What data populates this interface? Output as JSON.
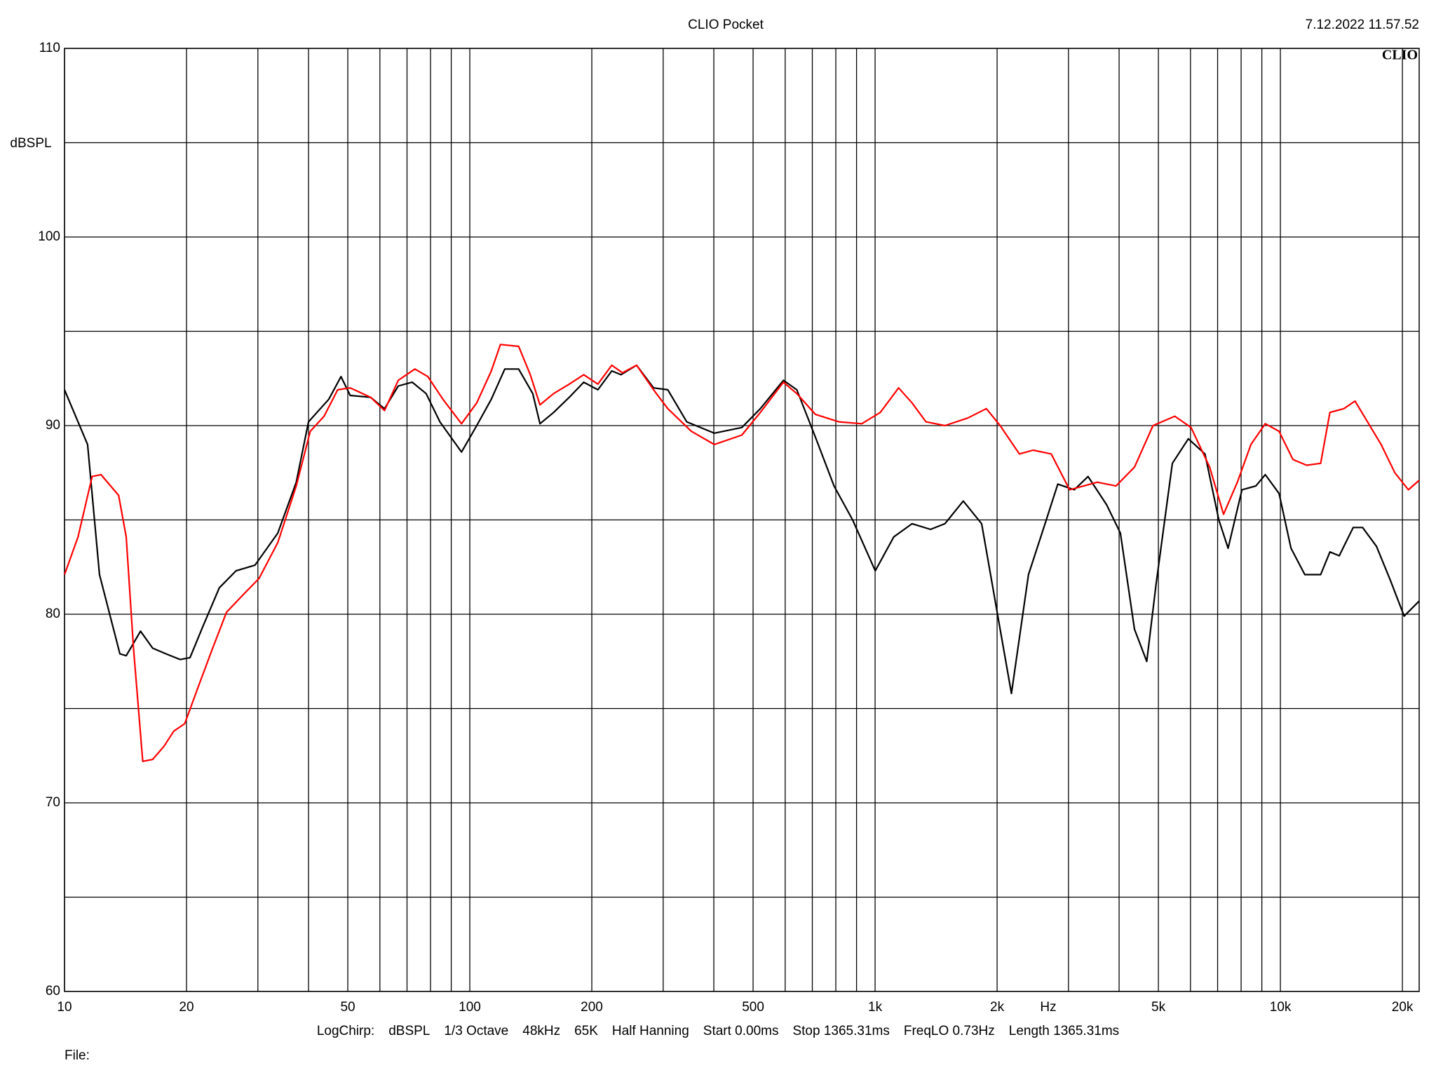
{
  "chart_data": {
    "type": "line",
    "title": "CLIO Pocket",
    "timestamp": "7.12.2022 11.57.52",
    "logo": "CLIO",
    "y_label": "dBSPL",
    "x_label": "Hz",
    "log_x": true,
    "grid": true,
    "xlim": [
      10,
      22000
    ],
    "xticks": [
      10,
      20,
      50,
      100,
      200,
      500,
      {
        "value": 1000,
        "label": "1k"
      },
      {
        "value": 2000,
        "label": "2k"
      },
      {
        "value": 5000,
        "label": "5k"
      },
      {
        "value": 10000,
        "label": "10k"
      },
      {
        "value": 20000,
        "label": "20k"
      }
    ],
    "xgrid_minor": [
      30,
      40,
      60,
      70,
      80,
      90,
      300,
      400,
      600,
      700,
      800,
      900,
      3000,
      4000,
      6000,
      7000,
      8000,
      9000
    ],
    "ylim": [
      60,
      110
    ],
    "yticks": [
      60,
      70,
      80,
      90,
      100,
      110
    ],
    "ygrid_minor": [
      65,
      75,
      85,
      95,
      105
    ],
    "settings": [
      "LogChirp:",
      "dBSPL",
      "1/3 Octave",
      "48kHz",
      "65K",
      "Half Hanning",
      "Start 0.00ms",
      "Stop 1365.31ms",
      "FreqLO 0.73Hz",
      "Length 1365.31ms"
    ],
    "file_label": "File:",
    "series": [
      {
        "color": "#000000",
        "x": [
          10,
          11.4,
          12.2,
          13.7,
          14.2,
          15.4,
          16.5,
          17.8,
          19.3,
          20.4,
          22,
          24.1,
          26.5,
          29.5,
          33.6,
          37.3,
          40,
          44.9,
          48.1,
          50.7,
          56.9,
          61.6,
          66.6,
          72.1,
          78,
          84.4,
          95.4,
          104,
          113,
          122,
          132,
          143,
          149,
          161,
          176,
          191,
          207,
          224,
          236,
          258,
          284,
          308,
          343,
          401,
          469,
          521,
          594,
          641,
          712,
          792,
          880,
          1001,
          1112,
          1234,
          1370,
          1487,
          1650,
          1832,
          2035,
          2170,
          2390,
          2645,
          2823,
          3100,
          3354,
          3727,
          4030,
          4365,
          4680,
          4935,
          5413,
          5927,
          6516,
          7050,
          7430,
          8040,
          8700,
          9175,
          9925,
          10620,
          11490,
          12570,
          13250,
          13970,
          15120,
          15950,
          17260,
          18680,
          20200,
          22000
        ],
        "values": [
          91.9,
          89.0,
          82.1,
          77.9,
          77.8,
          79.1,
          78.2,
          77.9,
          77.6,
          77.7,
          79.4,
          81.4,
          82.3,
          82.6,
          84.3,
          87.0,
          90.2,
          91.4,
          92.6,
          91.6,
          91.5,
          90.9,
          92.1,
          92.3,
          91.7,
          90.2,
          88.6,
          90.0,
          91.4,
          93.0,
          93.0,
          91.7,
          90.1,
          90.7,
          91.5,
          92.3,
          91.9,
          92.9,
          92.7,
          93.2,
          92.0,
          91.9,
          90.2,
          89.6,
          89.9,
          90.9,
          92.4,
          91.9,
          89.4,
          86.8,
          85.0,
          82.3,
          84.1,
          84.8,
          84.5,
          84.8,
          86.0,
          84.8,
          79.2,
          75.8,
          82.1,
          85.0,
          86.9,
          86.6,
          87.3,
          85.8,
          84.3,
          79.2,
          77.5,
          81.6,
          88.0,
          89.3,
          88.5,
          85.0,
          83.5,
          86.6,
          86.8,
          87.4,
          86.4,
          83.5,
          82.1,
          82.1,
          83.3,
          83.1,
          84.6,
          84.6,
          83.6,
          81.8,
          79.9,
          80.7
        ]
      },
      {
        "color": "#ff0000",
        "x": [
          10,
          10.8,
          11.7,
          12.3,
          13.6,
          14.2,
          14.8,
          15.6,
          16.5,
          17.6,
          18.6,
          19.8,
          21.5,
          23.2,
          25.1,
          27.5,
          30.2,
          33.6,
          37.3,
          40.4,
          43.7,
          47.2,
          50.7,
          56.9,
          61.6,
          66.6,
          73.2,
          78.8,
          85.8,
          95.4,
          104,
          113,
          119,
          132,
          141,
          149,
          161,
          176,
          191,
          207,
          224,
          238,
          258,
          284,
          308,
          352,
          401,
          469,
          521,
          594,
          641,
          712,
          814,
          927,
          1030,
          1143,
          1234,
          1335,
          1487,
          1693,
          1881,
          2035,
          2270,
          2455,
          2720,
          3020,
          3270,
          3535,
          3930,
          4365,
          4850,
          5490,
          6020,
          6690,
          7240,
          7830,
          8460,
          9175,
          9925,
          10740,
          11610,
          12570,
          13250,
          14340,
          15280,
          16400,
          17720,
          19160,
          20690,
          22000
        ],
        "values": [
          82.1,
          84.1,
          87.3,
          87.4,
          86.3,
          84.1,
          78.2,
          72.2,
          72.3,
          73.0,
          73.8,
          74.2,
          76.3,
          78.2,
          80.1,
          81.0,
          81.9,
          83.8,
          86.8,
          89.7,
          90.5,
          91.9,
          92.0,
          91.5,
          90.8,
          92.4,
          93.0,
          92.6,
          91.4,
          90.1,
          91.2,
          92.9,
          94.3,
          94.2,
          92.7,
          91.1,
          91.7,
          92.2,
          92.7,
          92.2,
          93.2,
          92.8,
          93.2,
          91.9,
          90.9,
          89.7,
          89.0,
          89.5,
          90.7,
          92.3,
          91.7,
          90.6,
          90.2,
          90.1,
          90.7,
          92.0,
          91.2,
          90.2,
          90.0,
          90.4,
          90.9,
          90.0,
          88.5,
          88.7,
          88.5,
          86.6,
          86.8,
          87.0,
          86.8,
          87.8,
          90.0,
          90.5,
          89.9,
          87.8,
          85.3,
          87.0,
          89.0,
          90.1,
          89.7,
          88.2,
          87.9,
          88.0,
          90.7,
          90.9,
          91.3,
          90.2,
          89.0,
          87.5,
          86.6,
          87.1
        ]
      }
    ]
  }
}
